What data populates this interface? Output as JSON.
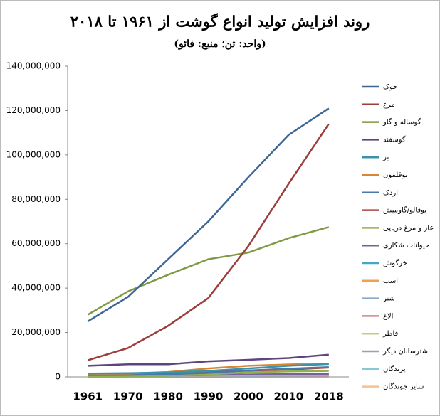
{
  "chart_data": {
    "type": "line",
    "title": "روند افزایش تولید انواع گوشت از ۱۹۶۱ تا ۲۰۱۸",
    "subtitle": "(واحد: تن؛ منبع: فائو)",
    "categories": [
      "1961",
      "1970",
      "1980",
      "1990",
      "2000",
      "2010",
      "2018"
    ],
    "ylim": [
      0,
      140000000
    ],
    "yticks": [
      {
        "value": 0,
        "label": "0"
      },
      {
        "value": 20000000,
        "label": "20,000,000"
      },
      {
        "value": 40000000,
        "label": "40,000,000"
      },
      {
        "value": 60000000,
        "label": "60,000,000"
      },
      {
        "value": 80000000,
        "label": "80,000,000"
      },
      {
        "value": 100000000,
        "label": "100,000,000"
      },
      {
        "value": 120000000,
        "label": "120,000,000"
      },
      {
        "value": 140000000,
        "label": "140,000,000"
      }
    ],
    "grid": false,
    "series": [
      {
        "name": "خوک",
        "color": "#3d6792",
        "values": [
          25000000,
          36000000,
          53000000,
          70000000,
          90000000,
          109000000,
          121000000
        ]
      },
      {
        "name": "مرغ",
        "color": "#9c3d3a",
        "values": [
          7500000,
          13000000,
          23000000,
          35500000,
          59000000,
          87000000,
          114000000
        ]
      },
      {
        "name": "گوساله و گاو",
        "color": "#7f9a43",
        "values": [
          28000000,
          38500000,
          46000000,
          53000000,
          56000000,
          62500000,
          67500000
        ]
      },
      {
        "name": "گوسفند",
        "color": "#5e4580",
        "values": [
          5000000,
          5700000,
          5700000,
          7000000,
          7700000,
          8500000,
          10000000
        ]
      },
      {
        "name": "بز",
        "color": "#3a93a8",
        "values": [
          1500000,
          1700000,
          2000000,
          2700000,
          3800000,
          5000000,
          5800000
        ]
      },
      {
        "name": "بوقلمون",
        "color": "#d98535",
        "values": [
          1300000,
          1500000,
          2200000,
          3800000,
          5000000,
          5600000,
          6000000
        ]
      },
      {
        "name": "اردک",
        "color": "#4a78ac",
        "values": [
          800000,
          900000,
          1200000,
          1800000,
          2900000,
          3700000,
          4400000
        ]
      },
      {
        "name": "بوفالو/گاومیش",
        "color": "#ad4844",
        "values": [
          1000000,
          1300000,
          1700000,
          2200000,
          2800000,
          3300000,
          4200000
        ]
      },
      {
        "name": "غاز و مرغ دریایی",
        "color": "#93b050",
        "values": [
          300000,
          400000,
          500000,
          1200000,
          2000000,
          2500000,
          2700000
        ]
      },
      {
        "name": "حیوانات شکاری",
        "color": "#78609a",
        "values": [
          500000,
          600000,
          800000,
          1000000,
          1100000,
          1200000,
          1300000
        ]
      },
      {
        "name": "خرگوش",
        "color": "#45a8c0",
        "values": [
          300000,
          400000,
          600000,
          900000,
          1100000,
          1200000,
          1400000
        ]
      },
      {
        "name": "اسب",
        "color": "#f0a050",
        "values": [
          500000,
          600000,
          600000,
          600000,
          700000,
          700000,
          800000
        ]
      },
      {
        "name": "شتر",
        "color": "#8aa8c8",
        "values": [
          200000,
          200000,
          200000,
          300000,
          400000,
          500000,
          600000
        ]
      },
      {
        "name": "الاغ",
        "color": "#d08a88",
        "values": [
          50000,
          60000,
          70000,
          100000,
          150000,
          200000,
          220000
        ]
      },
      {
        "name": "قاطر",
        "color": "#b8d08a",
        "values": [
          20000,
          25000,
          30000,
          35000,
          40000,
          45000,
          50000
        ]
      },
      {
        "name": "شترسانان دیگر",
        "color": "#a898c0",
        "values": [
          10000,
          15000,
          20000,
          25000,
          30000,
          35000,
          40000
        ]
      },
      {
        "name": "پرندگان",
        "color": "#88c8d8",
        "values": [
          30000,
          40000,
          60000,
          80000,
          100000,
          120000,
          140000
        ]
      },
      {
        "name": "سایر جوندگان",
        "color": "#f8c090",
        "values": [
          20000,
          30000,
          40000,
          60000,
          80000,
          100000,
          110000
        ]
      }
    ]
  }
}
